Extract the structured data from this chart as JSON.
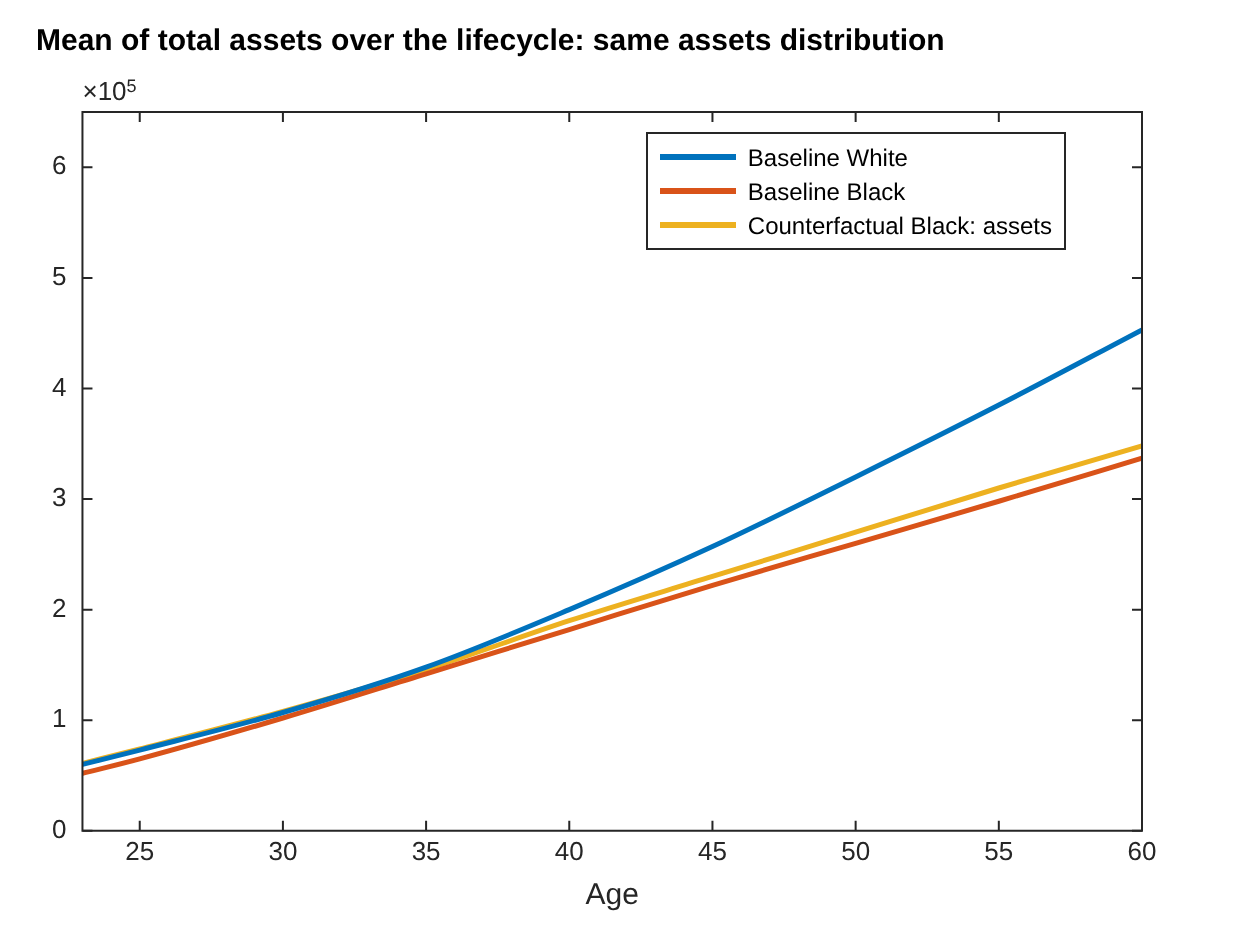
{
  "chart_data": {
    "type": "line",
    "title": "Mean of total assets over the lifecycle: same assets distribution",
    "xlabel": "Age",
    "annotations": [
      "×10$^{5}$"
    ],
    "x": [
      23,
      25,
      30,
      35,
      40,
      45,
      50,
      55,
      60
    ],
    "series": [
      {
        "name": "Baseline White",
        "color": "#0072bd",
        "values": [
          0.6,
          0.73,
          1.07,
          1.48,
          2.0,
          2.57,
          3.2,
          3.85,
          4.53
        ]
      },
      {
        "name": "Baseline Black",
        "color": "#d95319",
        "values": [
          0.52,
          0.65,
          1.02,
          1.42,
          1.82,
          2.22,
          2.6,
          2.98,
          3.37
        ]
      },
      {
        "name": "Counterfactual Black: assets",
        "color": "#edb120",
        "values": [
          0.61,
          0.74,
          1.08,
          1.46,
          1.9,
          2.3,
          2.7,
          3.1,
          3.48
        ]
      }
    ],
    "xlim": [
      23,
      60
    ],
    "xticks": [
      25,
      30,
      35,
      40,
      45,
      50,
      55,
      60
    ],
    "ylim": [
      0,
      6.5
    ],
    "yticks": [
      0,
      1,
      2,
      3,
      4,
      5,
      6
    ],
    "grid": false,
    "legend": "top right",
    "line_style": "solid"
  }
}
